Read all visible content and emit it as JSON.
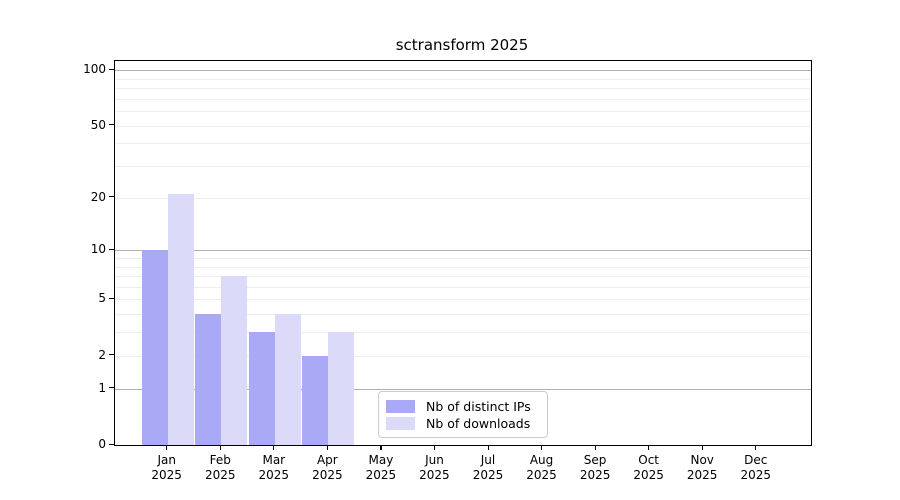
{
  "title": "sctransform 2025",
  "chart_data": {
    "type": "bar",
    "title": "sctransform 2025",
    "categories": [
      "Jan 2025",
      "Feb 2025",
      "Mar 2025",
      "Apr 2025",
      "May 2025",
      "Jun 2025",
      "Jul 2025",
      "Aug 2025",
      "Sep 2025",
      "Oct 2025",
      "Nov 2025",
      "Dec 2025"
    ],
    "months": [
      "Jan",
      "Feb",
      "Mar",
      "Apr",
      "May",
      "Jun",
      "Jul",
      "Aug",
      "Sep",
      "Oct",
      "Nov",
      "Dec"
    ],
    "year_label": "2025",
    "series": [
      {
        "name": "Nb of distinct IPs",
        "color": "#a9a9f6",
        "values": [
          10,
          4,
          3,
          2,
          0,
          0,
          0,
          0,
          0,
          0,
          0,
          0
        ]
      },
      {
        "name": "Nb of downloads",
        "color": "#dbdbf9",
        "values": [
          21,
          7,
          4,
          3,
          0,
          0,
          0,
          0,
          0,
          0,
          0,
          0
        ]
      }
    ],
    "y_axis": {
      "scale": "log10(1+y)",
      "tick_labels": [
        0,
        1,
        2,
        5,
        10,
        20,
        50,
        100
      ],
      "major_gridlines": [
        1,
        10,
        100
      ],
      "minor_gridlines": [
        2,
        3,
        4,
        5,
        6,
        7,
        8,
        9,
        20,
        30,
        40,
        50,
        60,
        70,
        80,
        90
      ],
      "range_top": 113
    },
    "legend_position": "lower center",
    "grid": true
  },
  "colors": {
    "background": "#ffffff",
    "bar_distinct_ips": "#a9a9f6",
    "bar_downloads": "#dbdbf9",
    "major_gridline": "#b0b0b0",
    "minor_gridline": "#ededed",
    "spine": "#000000",
    "text": "#000000"
  }
}
